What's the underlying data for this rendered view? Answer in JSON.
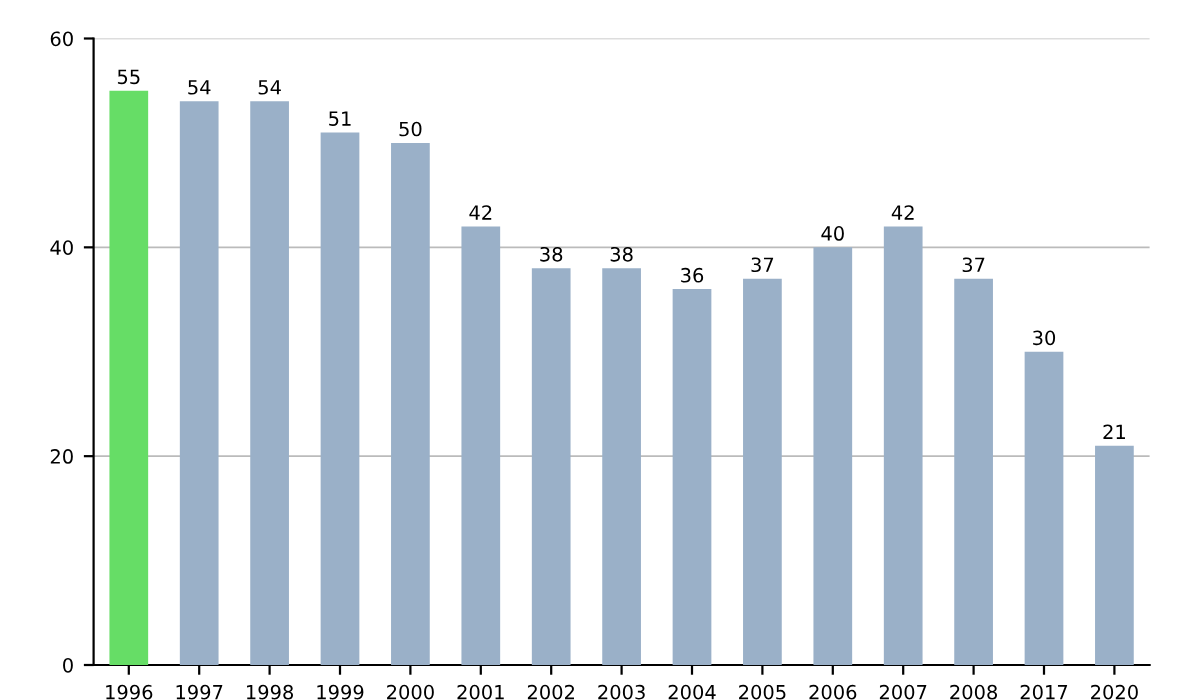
{
  "chart_data": {
    "type": "bar",
    "categories": [
      "1996",
      "1997",
      "1998",
      "1999",
      "2000",
      "2001",
      "2002",
      "2003",
      "2004",
      "2005",
      "2006",
      "2007",
      "2008",
      "2017",
      "2020"
    ],
    "values": [
      55,
      54,
      54,
      51,
      50,
      42,
      38,
      38,
      36,
      37,
      40,
      42,
      37,
      30,
      21
    ],
    "colors": [
      "#66dd66",
      "#9ab0c8",
      "#9ab0c8",
      "#9ab0c8",
      "#9ab0c8",
      "#9ab0c8",
      "#9ab0c8",
      "#9ab0c8",
      "#9ab0c8",
      "#9ab0c8",
      "#9ab0c8",
      "#9ab0c8",
      "#9ab0c8",
      "#9ab0c8",
      "#9ab0c8"
    ],
    "ylim": [
      0,
      60
    ],
    "yticks": [
      0,
      20,
      40,
      60
    ],
    "grid": "y",
    "data_labels": true
  }
}
